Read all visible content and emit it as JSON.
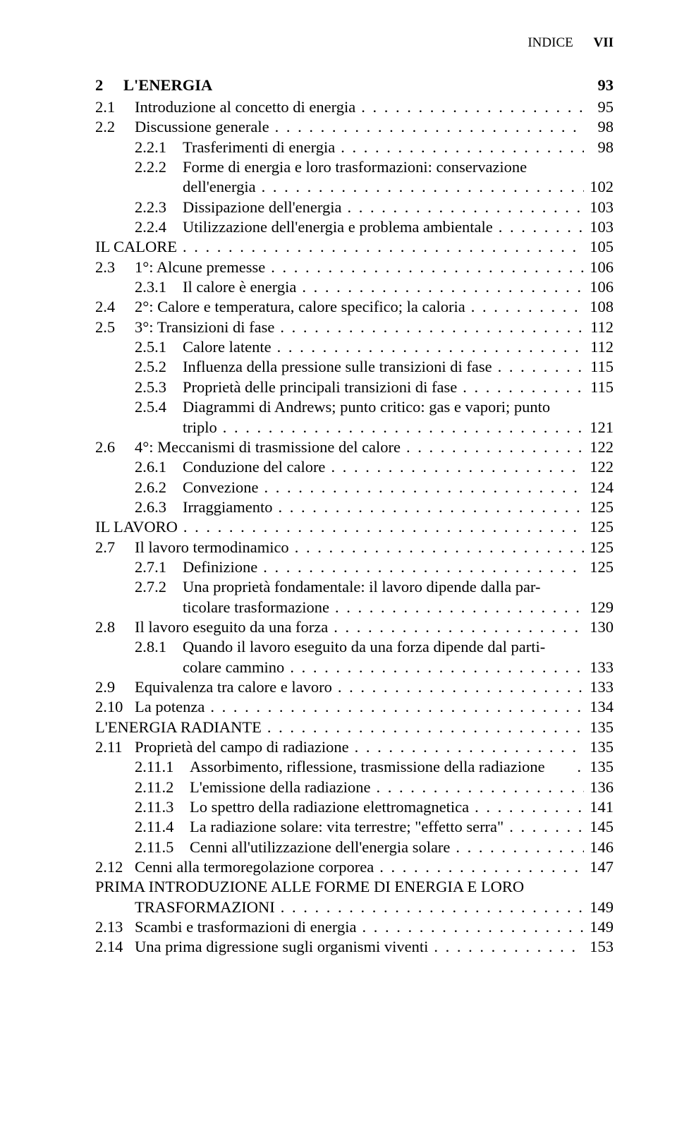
{
  "header": {
    "word": "INDICE",
    "roman": "VII"
  },
  "chapter": {
    "num": "2",
    "title": "L'ENERGIA",
    "page": "93"
  },
  "entries": [
    {
      "level": 1,
      "num": "2.1",
      "label": "Introduzione al concetto di energia",
      "page": "95"
    },
    {
      "level": 1,
      "num": "2.2",
      "label": "Discussione generale",
      "page": "98"
    },
    {
      "level": 2,
      "num": "2.2.1",
      "label": "Trasferimenti di energia",
      "page": "98"
    },
    {
      "level": 2,
      "num": "2.2.2",
      "label": "Forme di energia e loro trasformazioni: conservazione",
      "nodots": true
    },
    {
      "level": 3,
      "label": "dell'energia",
      "page": "102"
    },
    {
      "level": 2,
      "num": "2.2.3",
      "label": "Dissipazione dell'energia",
      "page": "103"
    },
    {
      "level": 2,
      "num": "2.2.4",
      "label": "Utilizzazione dell'energia e problema ambientale",
      "page": "103"
    },
    {
      "level": 0,
      "label": "IL CALORE",
      "page": "105"
    },
    {
      "level": 1,
      "num": "2.3",
      "label": "1°: Alcune premesse",
      "page": "106"
    },
    {
      "level": 2,
      "num": "2.3.1",
      "label": "Il calore è energia",
      "page": "106"
    },
    {
      "level": 1,
      "num": "2.4",
      "label": "2°: Calore e temperatura, calore specifico; la caloria",
      "page": "108"
    },
    {
      "level": 1,
      "num": "2.5",
      "label": "3°: Transizioni di fase",
      "page": "112"
    },
    {
      "level": 2,
      "num": "2.5.1",
      "label": "Calore latente",
      "page": "112"
    },
    {
      "level": 2,
      "num": "2.5.2",
      "label": "Influenza della pressione sulle transizioni di fase",
      "page": "115"
    },
    {
      "level": 2,
      "num": "2.5.3",
      "label": "Proprietà delle principali transizioni di fase",
      "page": "115"
    },
    {
      "level": 2,
      "num": "2.5.4",
      "label": "Diagrammi di Andrews; punto critico: gas e vapori; punto",
      "nodots": true
    },
    {
      "level": 3,
      "label": "triplo",
      "page": "121"
    },
    {
      "level": 1,
      "num": "2.6",
      "label": "4°: Meccanismi di trasmissione del calore",
      "page": "122"
    },
    {
      "level": 2,
      "num": "2.6.1",
      "label": "Conduzione del calore",
      "page": "122"
    },
    {
      "level": 2,
      "num": "2.6.2",
      "label": "Convezione",
      "page": "124"
    },
    {
      "level": 2,
      "num": "2.6.3",
      "label": "Irraggiamento",
      "page": "125"
    },
    {
      "level": 0,
      "label": "IL LAVORO",
      "page": "125"
    },
    {
      "level": 1,
      "num": "2.7",
      "label": "Il lavoro termodinamico",
      "page": "125"
    },
    {
      "level": 2,
      "num": "2.7.1",
      "label": "Definizione",
      "page": "125"
    },
    {
      "level": 2,
      "num": "2.7.2",
      "label": "Una proprietà fondamentale: il lavoro dipende dalla par-",
      "nodots": true
    },
    {
      "level": 3,
      "label": "ticolare trasformazione",
      "page": "129"
    },
    {
      "level": 1,
      "num": "2.8",
      "label": "Il lavoro eseguito da una forza",
      "page": "130"
    },
    {
      "level": 2,
      "num": "2.8.1",
      "label": "Quando il lavoro eseguito da una forza dipende dal parti-",
      "nodots": true
    },
    {
      "level": 3,
      "label": "colare cammino",
      "page": "133"
    },
    {
      "level": 1,
      "num": "2.9",
      "label": "Equivalenza tra calore e lavoro",
      "page": "133"
    },
    {
      "level": 1,
      "num": "2.10",
      "label": "La potenza",
      "page": "134"
    },
    {
      "level": 0,
      "label": "L'ENERGIA RADIANTE",
      "page": "135"
    },
    {
      "level": 1,
      "num": "2.11",
      "label": "Proprietà del campo di radiazione",
      "page": "135"
    },
    {
      "level": 2,
      "num": "2.11.1",
      "label": "Assorbimento, riflessione, trasmissione della radiazione",
      "shortdots": true,
      "page": "135"
    },
    {
      "level": 2,
      "num": "2.11.2",
      "label": "L'emissione della radiazione",
      "page": "136"
    },
    {
      "level": 2,
      "num": "2.11.3",
      "label": "Lo spettro della radiazione elettromagnetica",
      "page": "141"
    },
    {
      "level": 2,
      "num": "2.11.4",
      "label": "La radiazione solare: vita terrestre; \"effetto serra\"",
      "page": "145"
    },
    {
      "level": 2,
      "num": "2.11.5",
      "label": "Cenni all'utilizzazione dell'energia solare",
      "page": "146"
    },
    {
      "level": 1,
      "num": "2.12",
      "label": "Cenni alla termoregolazione corporea",
      "page": "147"
    },
    {
      "level": 0,
      "label": "PRIMA INTRODUZIONE ALLE FORME DI ENERGIA E LORO",
      "nodots": true,
      "cont": true
    },
    {
      "level": 0,
      "indent": 56,
      "label": "TRASFORMAZIONI",
      "page": "149"
    },
    {
      "level": 1,
      "num": "2.13",
      "label": "Scambi e trasformazioni di energia",
      "page": "149"
    },
    {
      "level": 1,
      "num": "2.14",
      "label": "Una prima digressione sugli organismi viventi",
      "page": "153"
    }
  ]
}
